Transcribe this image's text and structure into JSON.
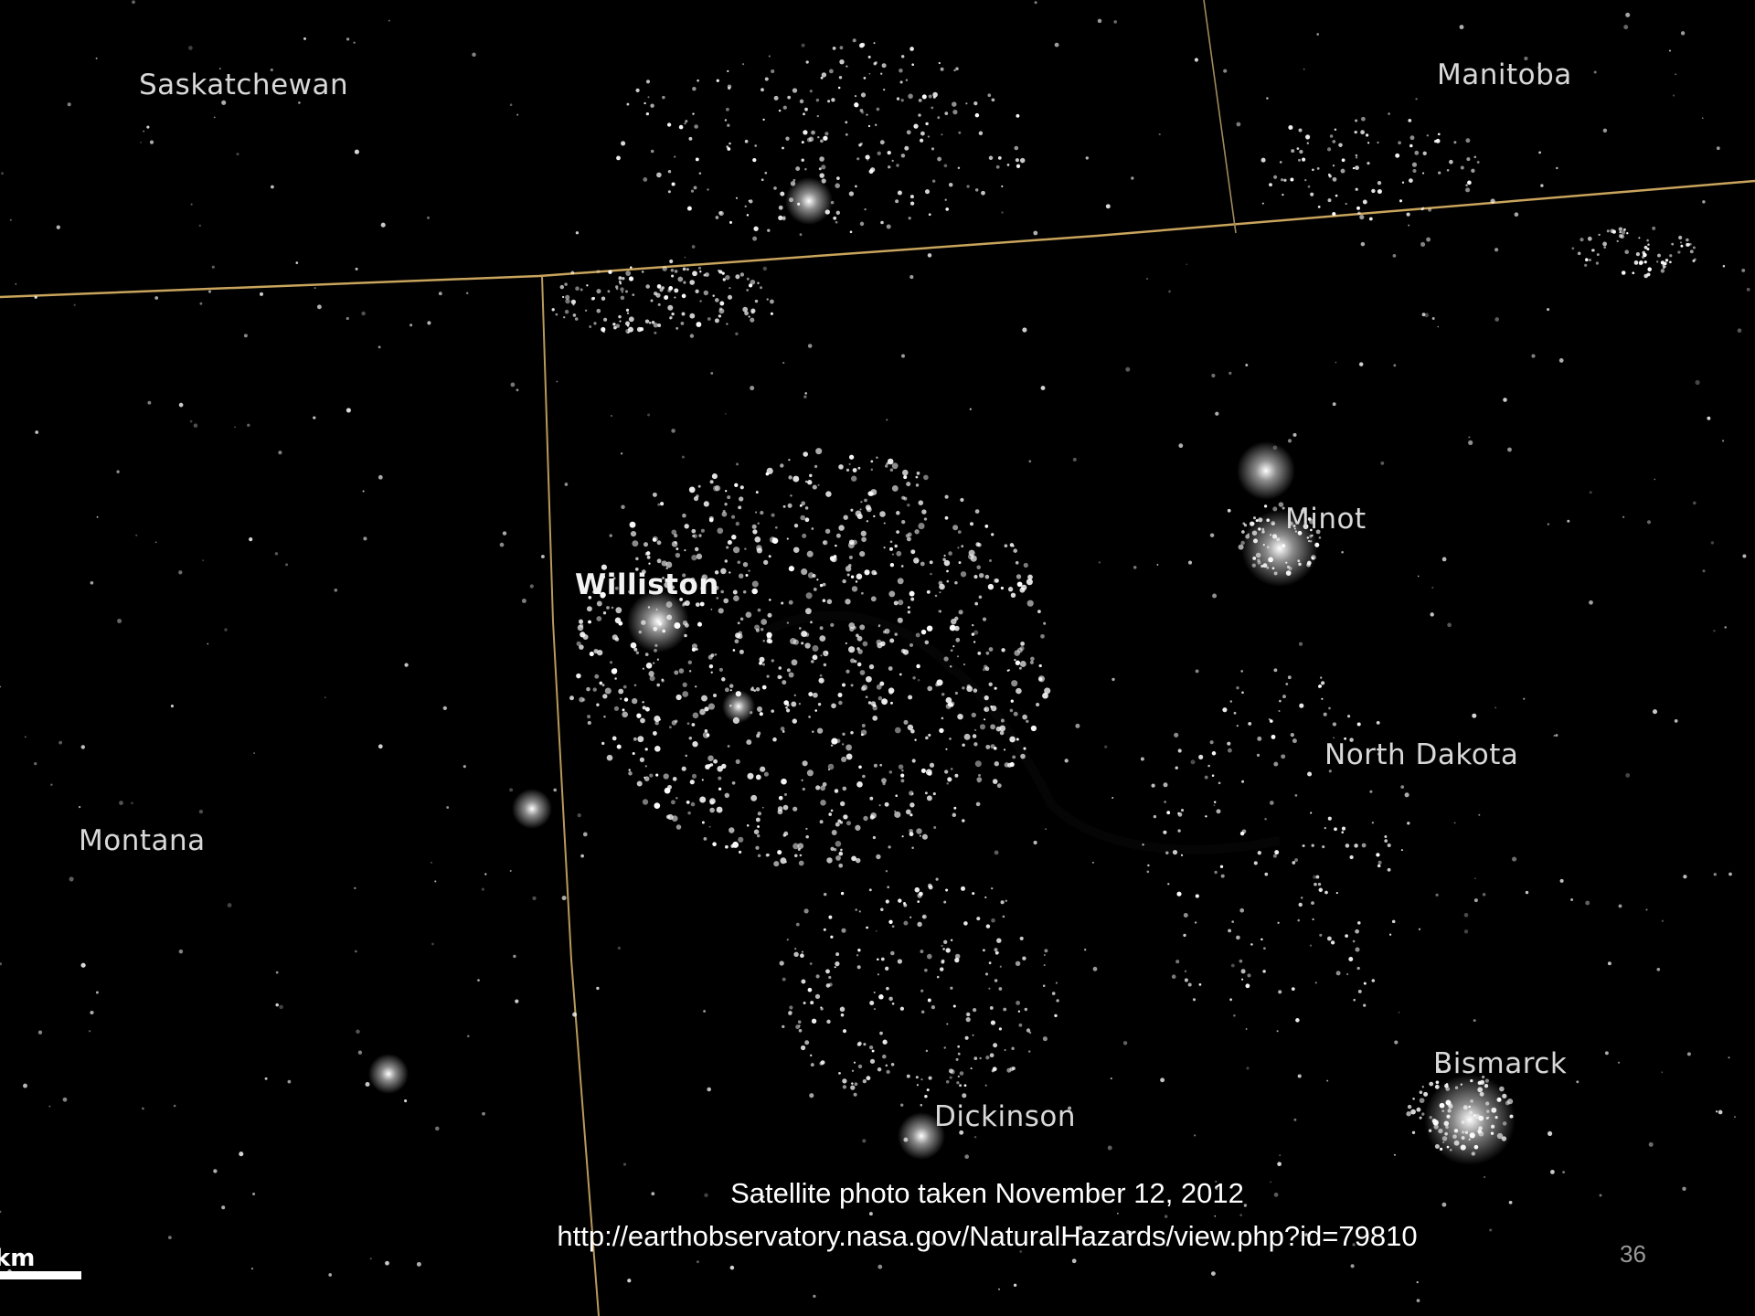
{
  "map": {
    "labels": {
      "saskatchewan": "Saskatchewan",
      "manitoba": "Manitoba",
      "minot": "Minot",
      "williston": "Williston",
      "north_dakota": "North Dakota",
      "montana": "Montana",
      "bismarck": "Bismarck",
      "dickinson": "Dickinson"
    },
    "scale_unit": "km",
    "colors": {
      "background": "#000000",
      "border_line": "#c9a45c",
      "lights": "#ffffff"
    }
  },
  "caption": {
    "line1": "Satellite photo taken November 12, 2012",
    "line2": "http://earthobservatory.nasa.gov/NaturalHazards/view.php?id=79810"
  },
  "slide_number": "36"
}
